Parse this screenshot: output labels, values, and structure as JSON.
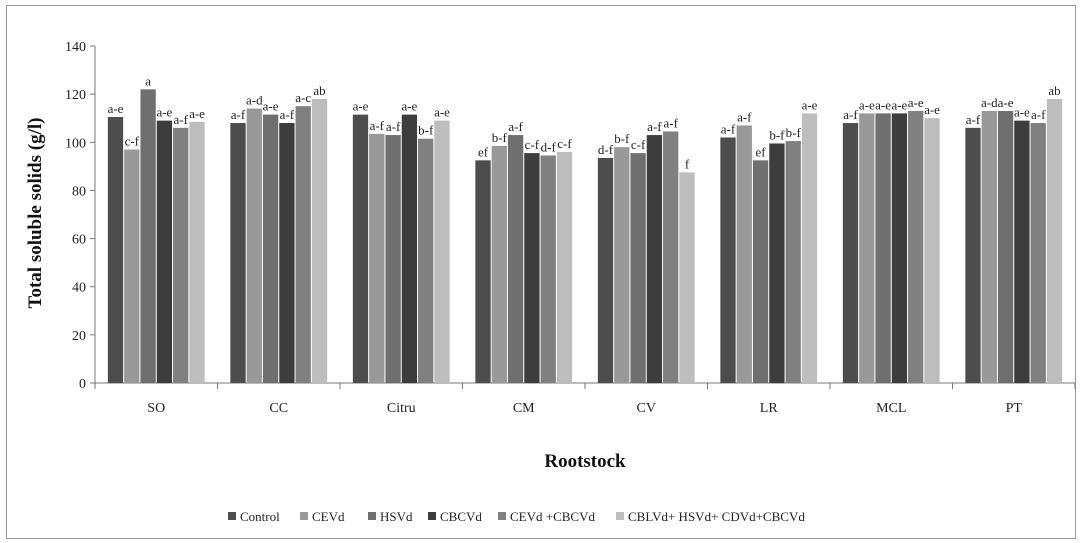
{
  "chart_data": {
    "type": "bar",
    "xlabel": "Rootstock",
    "ylabel": "Total soluble solids (g/l)",
    "ylim": [
      0,
      140
    ],
    "yticks": [
      0,
      20,
      40,
      60,
      80,
      100,
      120,
      140
    ],
    "grid": false,
    "legend_position": "bottom",
    "categories": [
      "SO",
      "CC",
      "Citru",
      "CM",
      "CV",
      "LR",
      "MCL",
      "PT"
    ],
    "series": [
      {
        "name": "Control",
        "color": "#4d4d4d",
        "values": [
          110.5,
          108,
          111.5,
          92.5,
          93.5,
          102,
          108,
          106
        ],
        "labels": [
          "a-e",
          "a-f",
          "a-e",
          "ef",
          "d-f",
          "a-f",
          "a-f",
          "a-f"
        ]
      },
      {
        "name": "CEVd",
        "color": "#999999",
        "values": [
          97,
          114,
          103.5,
          98.5,
          98,
          107,
          112,
          113
        ],
        "labels": [
          "c-f",
          "a-d",
          "a-f",
          "b-f",
          "b-f",
          "a-f",
          "a-e",
          "a-d"
        ]
      },
      {
        "name": "HSVd",
        "color": "#6f6f6f",
        "values": [
          122,
          111.5,
          103,
          103,
          95.5,
          92.5,
          112,
          113
        ],
        "labels": [
          "a",
          "a-e",
          "a-f",
          "a-f",
          "c-f",
          "ef",
          "a-e",
          "a-e"
        ]
      },
      {
        "name": "CBCVd",
        "color": "#3d3d3d",
        "values": [
          109,
          108,
          111.5,
          95.5,
          103,
          99.5,
          112,
          109
        ],
        "labels": [
          "a-e",
          "a-f",
          "a-e",
          "c-f",
          "a-f",
          "b-f",
          "a-e",
          "a-e"
        ]
      },
      {
        "name": "CEVd +CBCVd",
        "color": "#808080",
        "values": [
          106,
          115,
          101.5,
          94.5,
          104.5,
          100.5,
          113,
          108
        ],
        "labels": [
          "a-f",
          "a-c",
          "b-f",
          "d-f",
          "a-f",
          "b-f",
          "a-e",
          "a-f"
        ]
      },
      {
        "name": "CBLVd+ HSVd+ CDVd+CBCVd",
        "color": "#bdbdbd",
        "values": [
          108.5,
          118,
          109,
          96,
          87.5,
          112,
          110,
          118
        ],
        "labels": [
          "a-e",
          "ab",
          "a-e",
          "c-f",
          "f",
          "a-e",
          "a-e",
          "ab"
        ]
      }
    ]
  }
}
